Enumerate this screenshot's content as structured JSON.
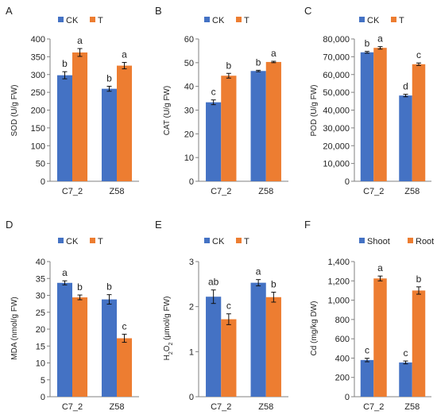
{
  "chart_data": [
    {
      "panel": "A",
      "type": "bar",
      "ylabel": "SOD (U/g FW)",
      "ylim": [
        0,
        400
      ],
      "yticks": [
        0,
        50,
        100,
        150,
        200,
        250,
        300,
        350,
        400
      ],
      "categories": [
        "C7_2",
        "Z58"
      ],
      "series": [
        {
          "name": "CK",
          "color": "#4472C4",
          "values": [
            298,
            260
          ],
          "errors": [
            10,
            7
          ],
          "labels": [
            "b",
            "b"
          ]
        },
        {
          "name": "T",
          "color": "#ED7D31",
          "values": [
            362,
            325
          ],
          "errors": [
            11,
            9
          ],
          "labels": [
            "a",
            "a"
          ]
        }
      ]
    },
    {
      "panel": "B",
      "type": "bar",
      "ylabel": "CAT (U/g FW)",
      "ylim": [
        0,
        60
      ],
      "yticks": [
        0,
        10,
        20,
        30,
        40,
        50,
        60
      ],
      "categories": [
        "C7_2",
        "Z58"
      ],
      "series": [
        {
          "name": "CK",
          "color": "#4472C4",
          "values": [
            33.3,
            46.5
          ],
          "errors": [
            1.0,
            0.3
          ],
          "labels": [
            "c",
            "b"
          ]
        },
        {
          "name": "T",
          "color": "#ED7D31",
          "values": [
            44.5,
            50.3
          ],
          "errors": [
            1.0,
            0.3
          ],
          "labels": [
            "b",
            "a"
          ]
        }
      ]
    },
    {
      "panel": "C",
      "type": "bar",
      "ylabel": "POD (U/g FW)",
      "ylim": [
        0,
        80000
      ],
      "yticks": [
        0,
        10000,
        20000,
        30000,
        40000,
        50000,
        60000,
        70000,
        80000
      ],
      "tick_labels": [
        "0",
        "10,000",
        "20,000",
        "30,000",
        "40,000",
        "50,000",
        "60,000",
        "70,000",
        "80,000"
      ],
      "categories": [
        "C7_2",
        "Z58"
      ],
      "series": [
        {
          "name": "CK",
          "color": "#4472C4",
          "values": [
            72500,
            48200
          ],
          "errors": [
            500,
            700
          ],
          "labels": [
            "b",
            "d"
          ]
        },
        {
          "name": "T",
          "color": "#ED7D31",
          "values": [
            75000,
            65800
          ],
          "errors": [
            700,
            700
          ],
          "labels": [
            "a",
            "c"
          ]
        }
      ]
    },
    {
      "panel": "D",
      "type": "bar",
      "ylabel": "MDA (nmol/g FW)",
      "ylim": [
        0,
        40
      ],
      "yticks": [
        0,
        5,
        10,
        15,
        20,
        25,
        30,
        35,
        40
      ],
      "categories": [
        "C7_2",
        "Z58"
      ],
      "series": [
        {
          "name": "CK",
          "color": "#4472C4",
          "values": [
            33.7,
            28.8
          ],
          "errors": [
            0.6,
            1.4
          ],
          "labels": [
            "a",
            "b"
          ]
        },
        {
          "name": "T",
          "color": "#ED7D31",
          "values": [
            29.4,
            17.3
          ],
          "errors": [
            0.7,
            1.2
          ],
          "labels": [
            "b",
            "c"
          ]
        }
      ]
    },
    {
      "panel": "E",
      "type": "bar",
      "ylabel_pre": "H",
      "ylabel_sub1": "2",
      "ylabel_mid": "O",
      "ylabel_sub2": "2",
      "ylabel_post": " (μmol/g FW)",
      "ylim": [
        0,
        3
      ],
      "yticks": [
        0,
        1,
        2,
        3
      ],
      "tick_labels": [
        "0",
        "1",
        "2",
        "3"
      ],
      "categories": [
        "C7_2",
        "Z58"
      ],
      "series": [
        {
          "name": "CK",
          "color": "#4472C4",
          "values": [
            2.22,
            2.53
          ],
          "errors": [
            0.15,
            0.07
          ],
          "labels": [
            "ab",
            "a"
          ]
        },
        {
          "name": "T",
          "color": "#ED7D31",
          "values": [
            1.72,
            2.21
          ],
          "errors": [
            0.12,
            0.11
          ],
          "labels": [
            "c",
            "b"
          ]
        }
      ]
    },
    {
      "panel": "F",
      "type": "bar",
      "ylabel": "Cd (mg/kg DW)",
      "ylim": [
        0,
        1400
      ],
      "yticks": [
        0,
        200,
        400,
        600,
        800,
        1000,
        1200,
        1400
      ],
      "tick_labels": [
        "0",
        "200",
        "400",
        "600",
        "800",
        "1,000",
        "1,200",
        "1,400"
      ],
      "categories": [
        "C7_2",
        "Z58"
      ],
      "series": [
        {
          "name": "Shoot",
          "color": "#4472C4",
          "values": [
            380,
            355
          ],
          "errors": [
            18,
            15
          ],
          "labels": [
            "c",
            "c"
          ]
        },
        {
          "name": "Root",
          "color": "#ED7D31",
          "values": [
            1225,
            1100
          ],
          "errors": [
            25,
            38
          ],
          "labels": [
            "a",
            "b"
          ]
        }
      ]
    }
  ]
}
